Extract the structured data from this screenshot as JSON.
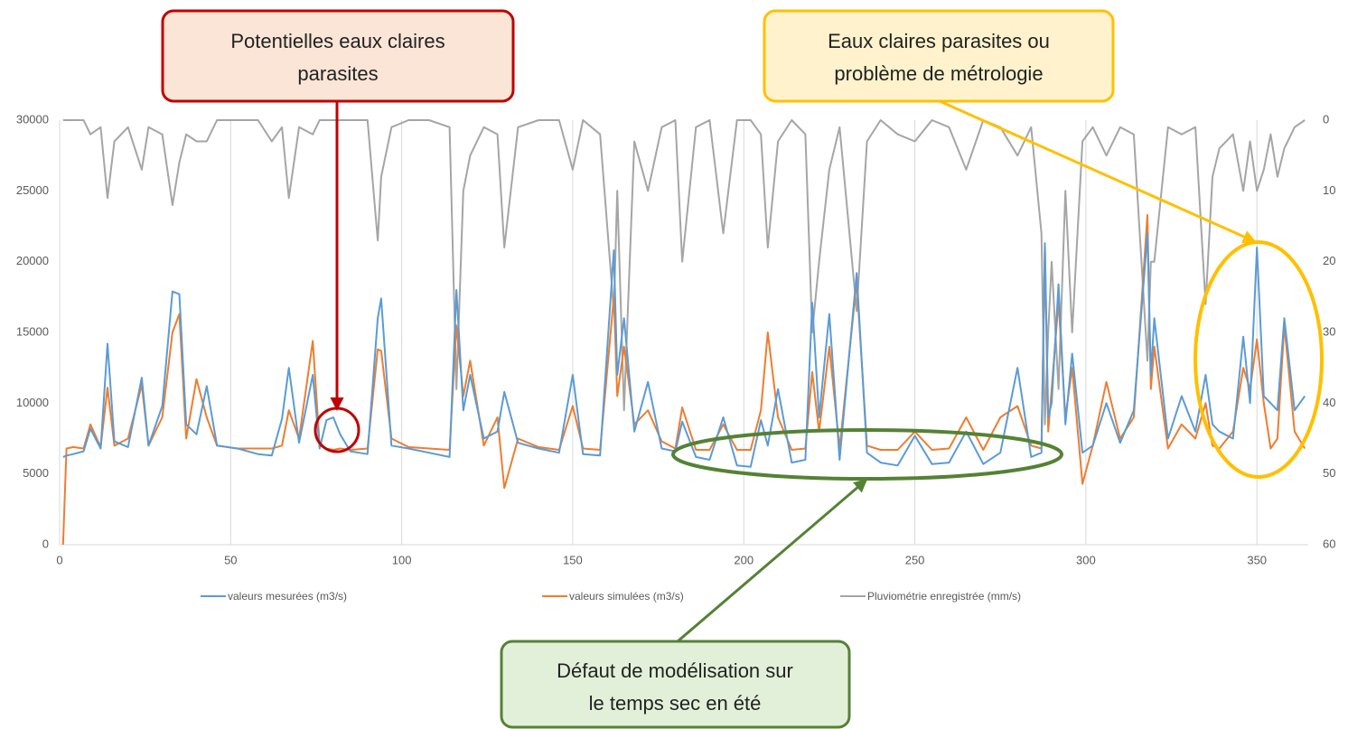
{
  "chart_data": {
    "type": "line",
    "x": [
      1,
      2,
      4,
      7,
      9,
      12,
      14,
      16,
      20,
      24,
      26,
      30,
      33,
      35,
      37,
      40,
      43,
      46,
      52,
      58,
      62,
      65,
      67,
      70,
      74,
      76,
      78,
      80,
      82,
      85,
      90,
      93,
      94,
      97,
      102,
      108,
      114,
      116,
      118,
      120,
      124,
      128,
      130,
      134,
      140,
      146,
      150,
      153,
      158,
      162,
      163,
      165,
      168,
      172,
      176,
      180,
      182,
      186,
      190,
      194,
      198,
      202,
      205,
      207,
      210,
      214,
      218,
      220,
      222,
      225,
      228,
      233,
      236,
      240,
      245,
      250,
      255,
      260,
      265,
      270,
      275,
      280,
      284,
      287,
      288,
      289,
      290,
      292,
      294,
      296,
      299,
      302,
      306,
      310,
      314,
      318,
      319,
      320,
      324,
      328,
      332,
      335,
      337,
      339,
      343,
      346,
      348,
      350,
      352,
      354,
      356,
      358,
      361,
      364
    ],
    "series": [
      {
        "name": "valeurs mesurées (m3/s)",
        "color": "#5b9bd5",
        "values": [
          6200,
          6300,
          6400,
          6600,
          8200,
          6800,
          14200,
          7300,
          6900,
          11800,
          7000,
          9800,
          17900,
          17700,
          8500,
          7800,
          11200,
          7000,
          6800,
          6400,
          6300,
          8900,
          12500,
          7200,
          12000,
          6800,
          8800,
          9000,
          7800,
          6600,
          6400,
          16000,
          17400,
          7000,
          6800,
          6500,
          6200,
          18000,
          9500,
          12000,
          7500,
          8000,
          10800,
          7200,
          6800,
          6500,
          12000,
          6400,
          6300,
          20800,
          12000,
          16000,
          8000,
          11500,
          6800,
          6600,
          8700,
          6200,
          6000,
          9000,
          5600,
          5500,
          8800,
          7000,
          11000,
          5800,
          6000,
          17100,
          9000,
          16300,
          6000,
          19200,
          6500,
          5800,
          5600,
          7700,
          5700,
          5800,
          8000,
          5700,
          6500,
          12500,
          6200,
          6500,
          21300,
          9000,
          10000,
          18400,
          8500,
          13500,
          6500,
          7000,
          10000,
          7200,
          9500,
          22000,
          12000,
          16000,
          7500,
          10500,
          8000,
          12000,
          8500,
          8000,
          7500,
          14700,
          10000,
          21000,
          10500,
          10000,
          9500,
          16000,
          9500,
          10500
        ]
      },
      {
        "name": "valeurs simulées (m3/s)",
        "color": "#ed7d31",
        "values": [
          0,
          6800,
          6900,
          6800,
          8500,
          6900,
          11100,
          7000,
          7500,
          11300,
          7000,
          9000,
          15000,
          16300,
          7500,
          11700,
          9000,
          7000,
          6800,
          6800,
          6800,
          7000,
          9500,
          7500,
          14400,
          7000,
          6800,
          6700,
          6800,
          6700,
          6800,
          13800,
          13700,
          7500,
          6900,
          6800,
          6700,
          15500,
          10500,
          13000,
          7000,
          9000,
          4000,
          7500,
          6900,
          6700,
          9800,
          6800,
          6700,
          17500,
          10500,
          14000,
          8500,
          9500,
          7300,
          6800,
          9700,
          6700,
          6700,
          8500,
          6700,
          6700,
          9500,
          15000,
          9000,
          6700,
          6800,
          12200,
          8000,
          14000,
          6800,
          18600,
          7000,
          6700,
          6700,
          8000,
          6700,
          6800,
          9000,
          6700,
          9000,
          9800,
          7000,
          6800,
          21000,
          8000,
          11000,
          17200,
          9000,
          12500,
          4300,
          7000,
          11500,
          7500,
          9000,
          23300,
          11000,
          14000,
          6800,
          8500,
          7500,
          10000,
          7000,
          6800,
          8000,
          12500,
          11000,
          14500,
          10000,
          6800,
          7500,
          15500,
          8000,
          6800
        ]
      },
      {
        "name": "Pluviométrie enregistrée (mm/s)",
        "color": "#a5a5a5",
        "axis": "y2",
        "values": [
          0,
          0,
          0,
          0,
          2,
          1,
          11,
          3,
          1,
          7,
          1,
          2,
          12,
          6,
          2,
          3,
          3,
          0,
          0,
          0,
          3,
          1,
          11,
          1,
          2,
          0,
          0,
          0,
          0,
          0,
          0,
          17,
          8,
          1,
          0,
          0,
          1,
          38,
          10,
          5,
          1,
          2,
          18,
          1,
          0,
          0,
          7,
          0,
          2,
          27,
          10,
          41,
          3,
          10,
          1,
          0,
          20,
          1,
          0,
          16,
          0,
          0,
          2,
          18,
          3,
          0,
          2,
          30,
          20,
          7,
          1,
          27,
          3,
          0,
          2,
          3,
          0,
          1,
          7,
          0,
          1,
          5,
          1,
          16,
          43,
          30,
          20,
          38,
          10,
          30,
          3,
          1,
          5,
          1,
          2,
          34,
          20,
          20,
          1,
          2,
          1,
          26,
          8,
          4,
          2,
          10,
          3,
          10,
          7,
          2,
          8,
          4,
          1,
          0
        ]
      }
    ],
    "xlim": [
      0,
      365
    ],
    "xticks": [
      0,
      50,
      100,
      150,
      200,
      250,
      300,
      350
    ],
    "ylim": [
      0,
      30000
    ],
    "yticks": [
      0,
      5000,
      10000,
      15000,
      20000,
      25000,
      30000
    ],
    "y2lim": [
      0,
      60
    ],
    "y2ticks": [
      0,
      10,
      20,
      30,
      40,
      50,
      60
    ],
    "y2_reversed": true,
    "grid": "x",
    "legend": "bottom",
    "annotations": [
      {
        "lines": [
          "Potentielles eaux claires",
          "parasites"
        ]
      },
      {
        "lines": [
          "Eaux claires parasites ou",
          "problème de métrologie"
        ]
      },
      {
        "lines": [
          "Défaut de modélisation sur",
          "le temps sec en été"
        ]
      }
    ]
  }
}
